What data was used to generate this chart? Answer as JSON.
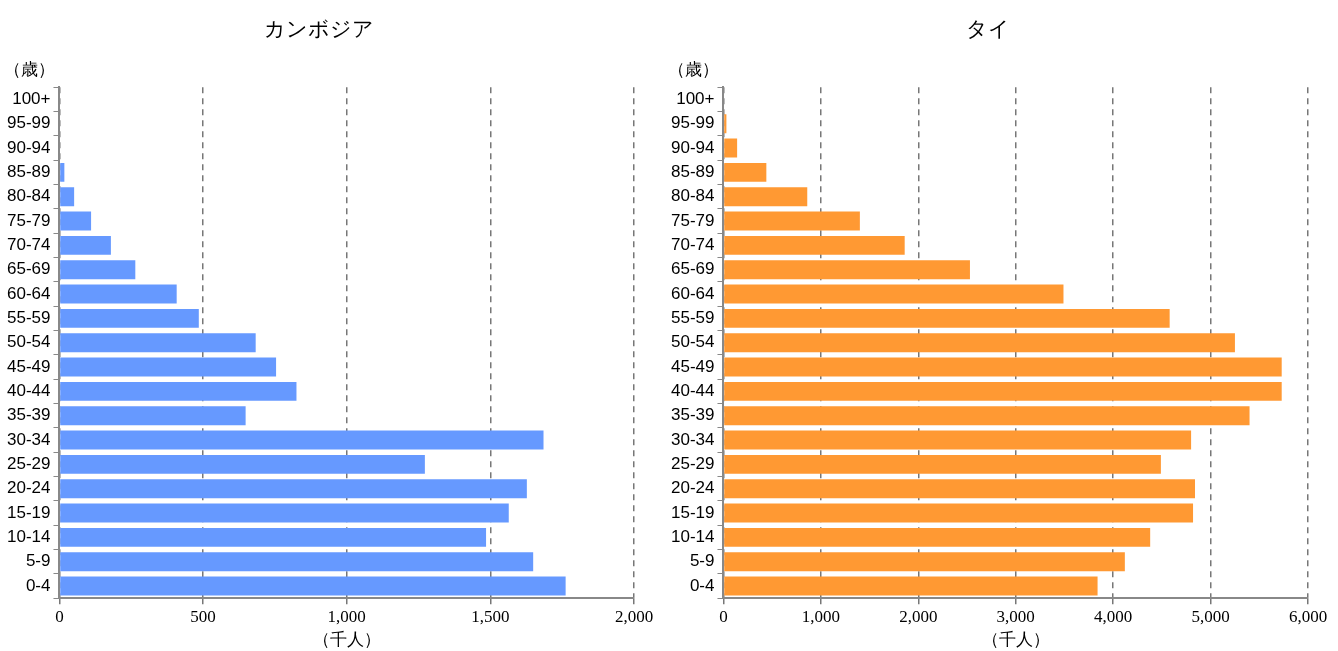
{
  "chart_data": [
    {
      "type": "bar",
      "orientation": "horizontal",
      "title": "カンボジア",
      "xlabel": "（千人）",
      "ylabel": "（歳）",
      "categories": [
        "100+",
        "95-99",
        "90-94",
        "85-89",
        "80-84",
        "75-79",
        "70-74",
        "65-69",
        "60-64",
        "55-59",
        "50-54",
        "45-49",
        "40-44",
        "35-39",
        "30-34",
        "25-29",
        "20-24",
        "15-19",
        "10-14",
        "5-9",
        "0-4"
      ],
      "values": [
        0,
        null,
        null,
        17,
        51,
        110,
        179,
        264,
        408,
        485,
        683,
        754,
        825,
        648,
        1685,
        1272,
        1627,
        1564,
        1485,
        1649,
        1762
      ],
      "color": "#6699ff",
      "xlim": [
        0,
        2000
      ],
      "xticks": [
        {
          "value": 0,
          "label": "0"
        },
        {
          "value": 500,
          "label": "500"
        },
        {
          "value": 1000,
          "label": "1,000"
        },
        {
          "value": 1500,
          "label": "1,500"
        },
        {
          "value": 2000,
          "label": "2,000"
        }
      ],
      "grid": "x"
    },
    {
      "type": "bar",
      "orientation": "horizontal",
      "title": "タイ",
      "xlabel": "（千人）",
      "ylabel": "（歳）",
      "categories": [
        "100+",
        "95-99",
        "90-94",
        "85-89",
        "80-84",
        "75-79",
        "70-74",
        "65-69",
        "60-64",
        "55-59",
        "50-54",
        "45-49",
        "40-44",
        "35-39",
        "30-34",
        "25-29",
        "20-24",
        "15-19",
        "10-14",
        "5-9",
        "0-4"
      ],
      "values": [
        0,
        30,
        140,
        440,
        860,
        1400,
        1860,
        2530,
        3490,
        4580,
        5250,
        5730,
        5730,
        5400,
        4800,
        4490,
        4840,
        4820,
        4380,
        4120,
        3840
      ],
      "color": "#ff9933",
      "xlim": [
        0,
        6000
      ],
      "xticks": [
        {
          "value": 0,
          "label": "0"
        },
        {
          "value": 1000,
          "label": "1,000"
        },
        {
          "value": 2000,
          "label": "2,000"
        },
        {
          "value": 3000,
          "label": "3,000"
        },
        {
          "value": 4000,
          "label": "4,000"
        },
        {
          "value": 5000,
          "label": "5,000"
        },
        {
          "value": 6000,
          "label": "6,000"
        }
      ],
      "grid": "x"
    }
  ]
}
